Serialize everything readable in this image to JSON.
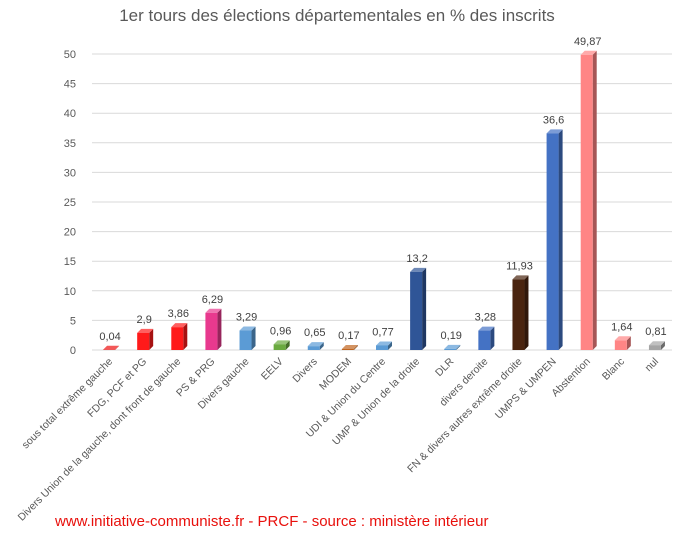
{
  "chart_data": {
    "type": "bar",
    "title": "1er tours des élections départementales en % des inscrits",
    "xlabel": "",
    "ylabel": "",
    "ylim": [
      0,
      50
    ],
    "yticks": [
      0,
      5,
      10,
      15,
      20,
      25,
      30,
      35,
      40,
      45,
      50
    ],
    "grid": true,
    "legend": "none",
    "categories": [
      "sous total extrême gauche",
      "FDG, PCF et PG",
      "Divers Union de la gauche, dont front de gauche",
      "PS & PRG",
      "Divers gauche",
      "EELV",
      "Divers",
      "MODEM",
      "UDI & Union du Centre",
      "UMP & Union de la droite",
      "DLR",
      "divers deroite",
      "FN & divers autres extrême droite",
      "UMPS & UMPEN",
      "Abstention",
      "Blanc",
      "nul"
    ],
    "values": [
      0.04,
      2.9,
      3.86,
      6.29,
      3.29,
      0.96,
      0.65,
      0.17,
      0.77,
      13.2,
      0.19,
      3.28,
      11.93,
      36.6,
      49.87,
      1.64,
      0.81
    ],
    "value_labels": [
      "0,04",
      "2,9",
      "3,86",
      "6,29",
      "3,29",
      "0,96",
      "0,65",
      "0,17",
      "0,77",
      "13,2",
      "0,19",
      "3,28",
      "11,93",
      "36,6",
      "49,87",
      "1,64",
      "0,81"
    ],
    "colors": [
      "#ee1111",
      "#ff1a1a",
      "#ff1a1a",
      "#e8398e",
      "#5b9bd5",
      "#6aaa3f",
      "#5b9bd5",
      "#c0651f",
      "#5b9bd5",
      "#2f5597",
      "#5b9bd5",
      "#4472c4",
      "#4a240f",
      "#4472c4",
      "#ff8585",
      "#ff8585",
      "#a5a5a5"
    ]
  },
  "footer": {
    "source": "www.initiative-communiste.fr - PRCF - source : ministère intérieur"
  }
}
